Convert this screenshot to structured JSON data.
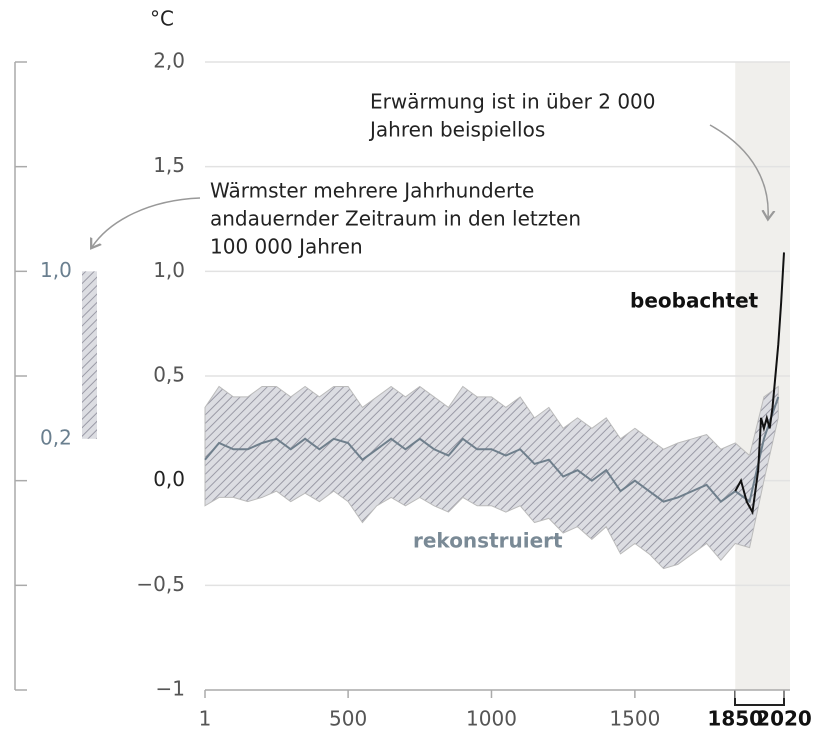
{
  "chart_data": {
    "type": "line",
    "unit": "°C",
    "xlim": [
      1,
      2020
    ],
    "ylim": [
      -1,
      2
    ],
    "xticks": [
      1,
      500,
      1000,
      1500,
      1850,
      2020
    ],
    "yticks": [
      {
        "value": -1,
        "label": "−1"
      },
      {
        "value": -0.5,
        "label": "−0,5"
      },
      {
        "value": 0,
        "label": "0,0"
      },
      {
        "value": 0.5,
        "label": "0,5"
      },
      {
        "value": 1,
        "label": "1,0"
      },
      {
        "value": 1.5,
        "label": "1,5"
      },
      {
        "value": 2,
        "label": "2,0"
      }
    ],
    "grid": true,
    "highlight_range": [
      1850,
      2020
    ],
    "series": [
      {
        "name": "rekonstruiert",
        "color": "#6f7f8c",
        "x": [
          1,
          50,
          100,
          150,
          200,
          250,
          300,
          350,
          400,
          450,
          500,
          550,
          600,
          650,
          700,
          750,
          800,
          850,
          900,
          950,
          1000,
          1050,
          1100,
          1150,
          1200,
          1250,
          1300,
          1350,
          1400,
          1450,
          1500,
          1550,
          1600,
          1650,
          1700,
          1750,
          1800,
          1850,
          1900,
          1950,
          2000
        ],
        "values": [
          0.1,
          0.18,
          0.15,
          0.15,
          0.18,
          0.2,
          0.15,
          0.2,
          0.15,
          0.2,
          0.18,
          0.1,
          0.15,
          0.2,
          0.15,
          0.2,
          0.15,
          0.12,
          0.2,
          0.15,
          0.15,
          0.12,
          0.15,
          0.08,
          0.1,
          0.02,
          0.05,
          0.0,
          0.05,
          -0.05,
          0.0,
          -0.05,
          -0.1,
          -0.08,
          -0.05,
          -0.02,
          -0.1,
          -0.05,
          -0.1,
          0.2,
          0.4
        ],
        "upper": [
          0.35,
          0.45,
          0.4,
          0.4,
          0.45,
          0.45,
          0.4,
          0.45,
          0.4,
          0.45,
          0.45,
          0.35,
          0.4,
          0.45,
          0.4,
          0.45,
          0.4,
          0.35,
          0.45,
          0.4,
          0.4,
          0.35,
          0.4,
          0.3,
          0.35,
          0.25,
          0.3,
          0.25,
          0.3,
          0.2,
          0.25,
          0.2,
          0.15,
          0.18,
          0.2,
          0.22,
          0.15,
          0.18,
          0.12,
          0.4,
          0.45
        ],
        "lower": [
          -0.12,
          -0.08,
          -0.08,
          -0.1,
          -0.08,
          -0.05,
          -0.1,
          -0.06,
          -0.1,
          -0.05,
          -0.1,
          -0.2,
          -0.12,
          -0.08,
          -0.12,
          -0.08,
          -0.12,
          -0.15,
          -0.08,
          -0.12,
          -0.12,
          -0.15,
          -0.12,
          -0.2,
          -0.18,
          -0.25,
          -0.22,
          -0.28,
          -0.22,
          -0.35,
          -0.3,
          -0.35,
          -0.42,
          -0.4,
          -0.35,
          -0.3,
          -0.38,
          -0.3,
          -0.32,
          0.0,
          0.3
        ]
      },
      {
        "name": "beobachtet",
        "color": "#111111",
        "x": [
          1850,
          1870,
          1890,
          1910,
          1930,
          1940,
          1950,
          1960,
          1970,
          1980,
          1990,
          2000,
          2010,
          2020
        ],
        "values": [
          -0.05,
          0.0,
          -0.1,
          -0.15,
          0.05,
          0.3,
          0.25,
          0.3,
          0.25,
          0.35,
          0.5,
          0.65,
          0.85,
          1.09
        ]
      }
    ],
    "warm_period": {
      "values": [
        0.2,
        1.0
      ],
      "value_labels": [
        "0,2",
        "1,0"
      ]
    },
    "annotations": [
      [
        "Erwärmung ist in über 2 000",
        "Jahren beispiellos"
      ],
      [
        "Wärmster mehrere Jahrhunderte",
        "andauernder Zeitraum in den letzten",
        "100 000 Jahren"
      ]
    ]
  }
}
